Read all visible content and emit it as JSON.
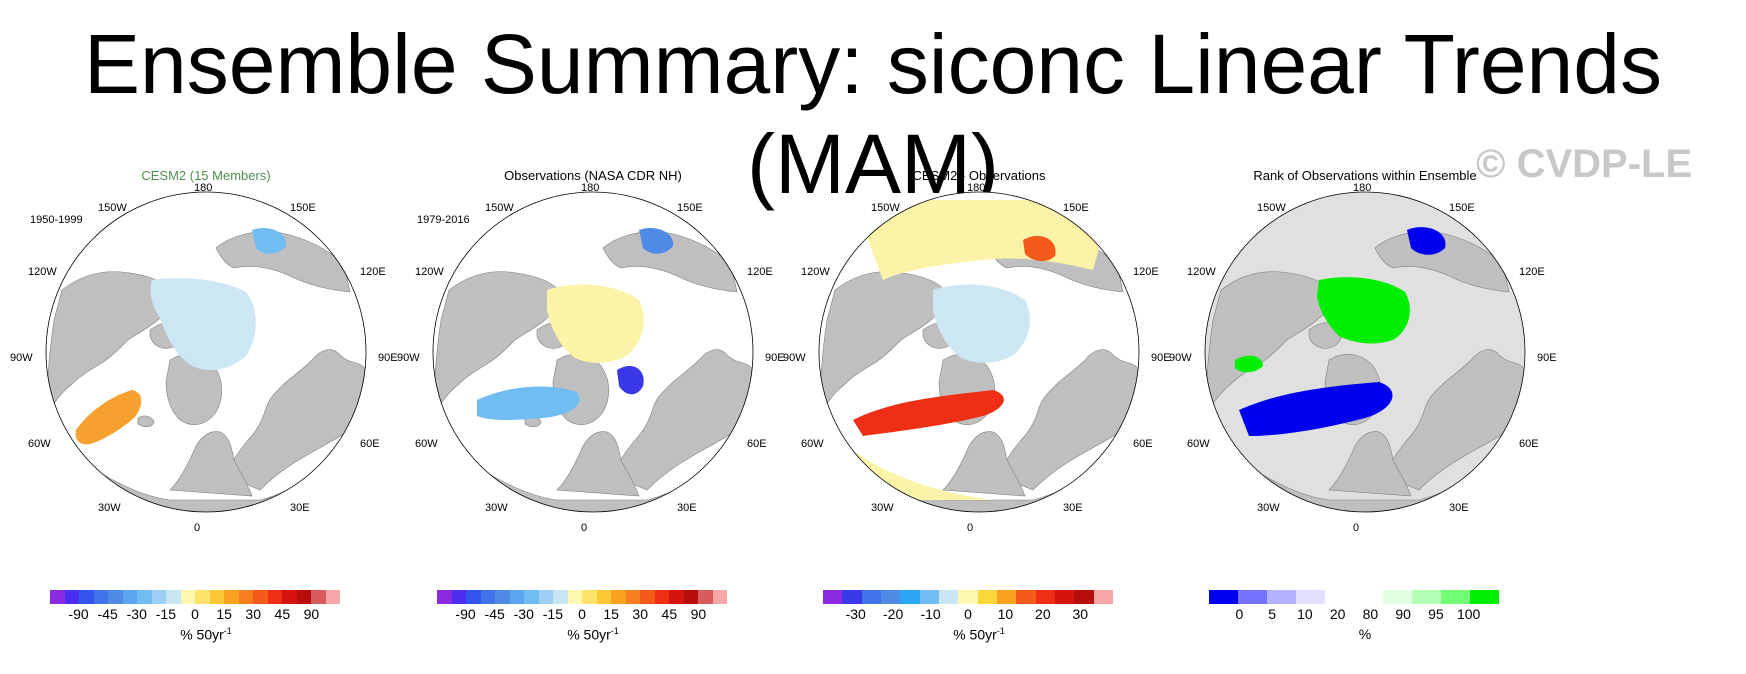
{
  "title": "Ensemble Summary: siconc Linear Trends (MAM)",
  "watermark": "© CVDP-LE",
  "lon_labels": {
    "n": "180",
    "ne": "150E",
    "e1": "120E",
    "e": "90E",
    "se1": "60E",
    "se": "30E",
    "s": "0",
    "sw": "30W",
    "sw1": "60W",
    "w": "90W",
    "nw1": "120W",
    "nw": "150W"
  },
  "colors": {
    "land": "#bfbfbf",
    "ocean": "#ffffff",
    "ice_blue": "#cde6f4",
    "pale_yellow": "#fbf3a8",
    "neutral": "#e0e0e0",
    "green": "#00ee00",
    "dark_blue": "#0000ee"
  },
  "panels": [
    {
      "title": "CESM2 (15 Members)",
      "period": "1950-1999",
      "colorbar": {
        "colors": [
          "#8a2be2",
          "#4b2df0",
          "#3355ee",
          "#3f73e8",
          "#4f8ae6",
          "#5ba5f0",
          "#70bdf2",
          "#9ccff3",
          "#c8e5f4",
          "#fff7b0",
          "#fde36a",
          "#fbc735",
          "#f9a21f",
          "#f77e1e",
          "#f45a1a",
          "#ee2f15",
          "#d5140f",
          "#b80d0d",
          "#d95c5c",
          "#f5a7a7"
        ],
        "labels": [
          "-90",
          "-45",
          "-30",
          "-15",
          "0",
          "15",
          "30",
          "45",
          "90"
        ]
      },
      "units": "% 50yr",
      "units_exp": "-1"
    },
    {
      "title": "Observations (NASA CDR NH)",
      "period": "1979-2016",
      "colorbar": {
        "colors": [
          "#8a2be2",
          "#4b2df0",
          "#3355ee",
          "#3f73e8",
          "#4f8ae6",
          "#5ba5f0",
          "#70bdf2",
          "#9ccff3",
          "#c8e5f4",
          "#fff7b0",
          "#fde36a",
          "#fbc735",
          "#f9a21f",
          "#f77e1e",
          "#f45a1a",
          "#ee2f15",
          "#d5140f",
          "#b80d0d",
          "#d95c5c",
          "#f5a7a7"
        ],
        "labels": [
          "-90",
          "-45",
          "-30",
          "-15",
          "0",
          "15",
          "30",
          "45",
          "90"
        ]
      },
      "units": "% 50yr",
      "units_exp": "-1"
    },
    {
      "title": "CESM2 - Observations",
      "period": "",
      "colorbar": {
        "colors": [
          "#8a2be2",
          "#3838e8",
          "#3f73e8",
          "#4f8ae6",
          "#2aa6f2",
          "#70bdf2",
          "#c8e5f4",
          "#fff7b0",
          "#fbd83a",
          "#f9a21f",
          "#f45a1a",
          "#ee2f15",
          "#d5140f",
          "#b80d0d",
          "#f5a7a7"
        ],
        "labels": [
          "-30",
          "-20",
          "-10",
          "0",
          "10",
          "20",
          "30"
        ]
      },
      "units": "% 50yr",
      "units_exp": "-1"
    },
    {
      "title": "Rank of Observations within Ensemble",
      "period": "",
      "colorbar": {
        "colors": [
          "#0000ee",
          "#7373ff",
          "#b3b3ff",
          "#e1e1ff",
          "#ffffff",
          "#ffffff",
          "#e1ffe1",
          "#b3ffb3",
          "#73ff73",
          "#00ee00"
        ],
        "labels": [
          "0",
          "5",
          "10",
          "20",
          "80",
          "90",
          "95",
          "100"
        ]
      },
      "units": "%",
      "units_exp": ""
    }
  ]
}
